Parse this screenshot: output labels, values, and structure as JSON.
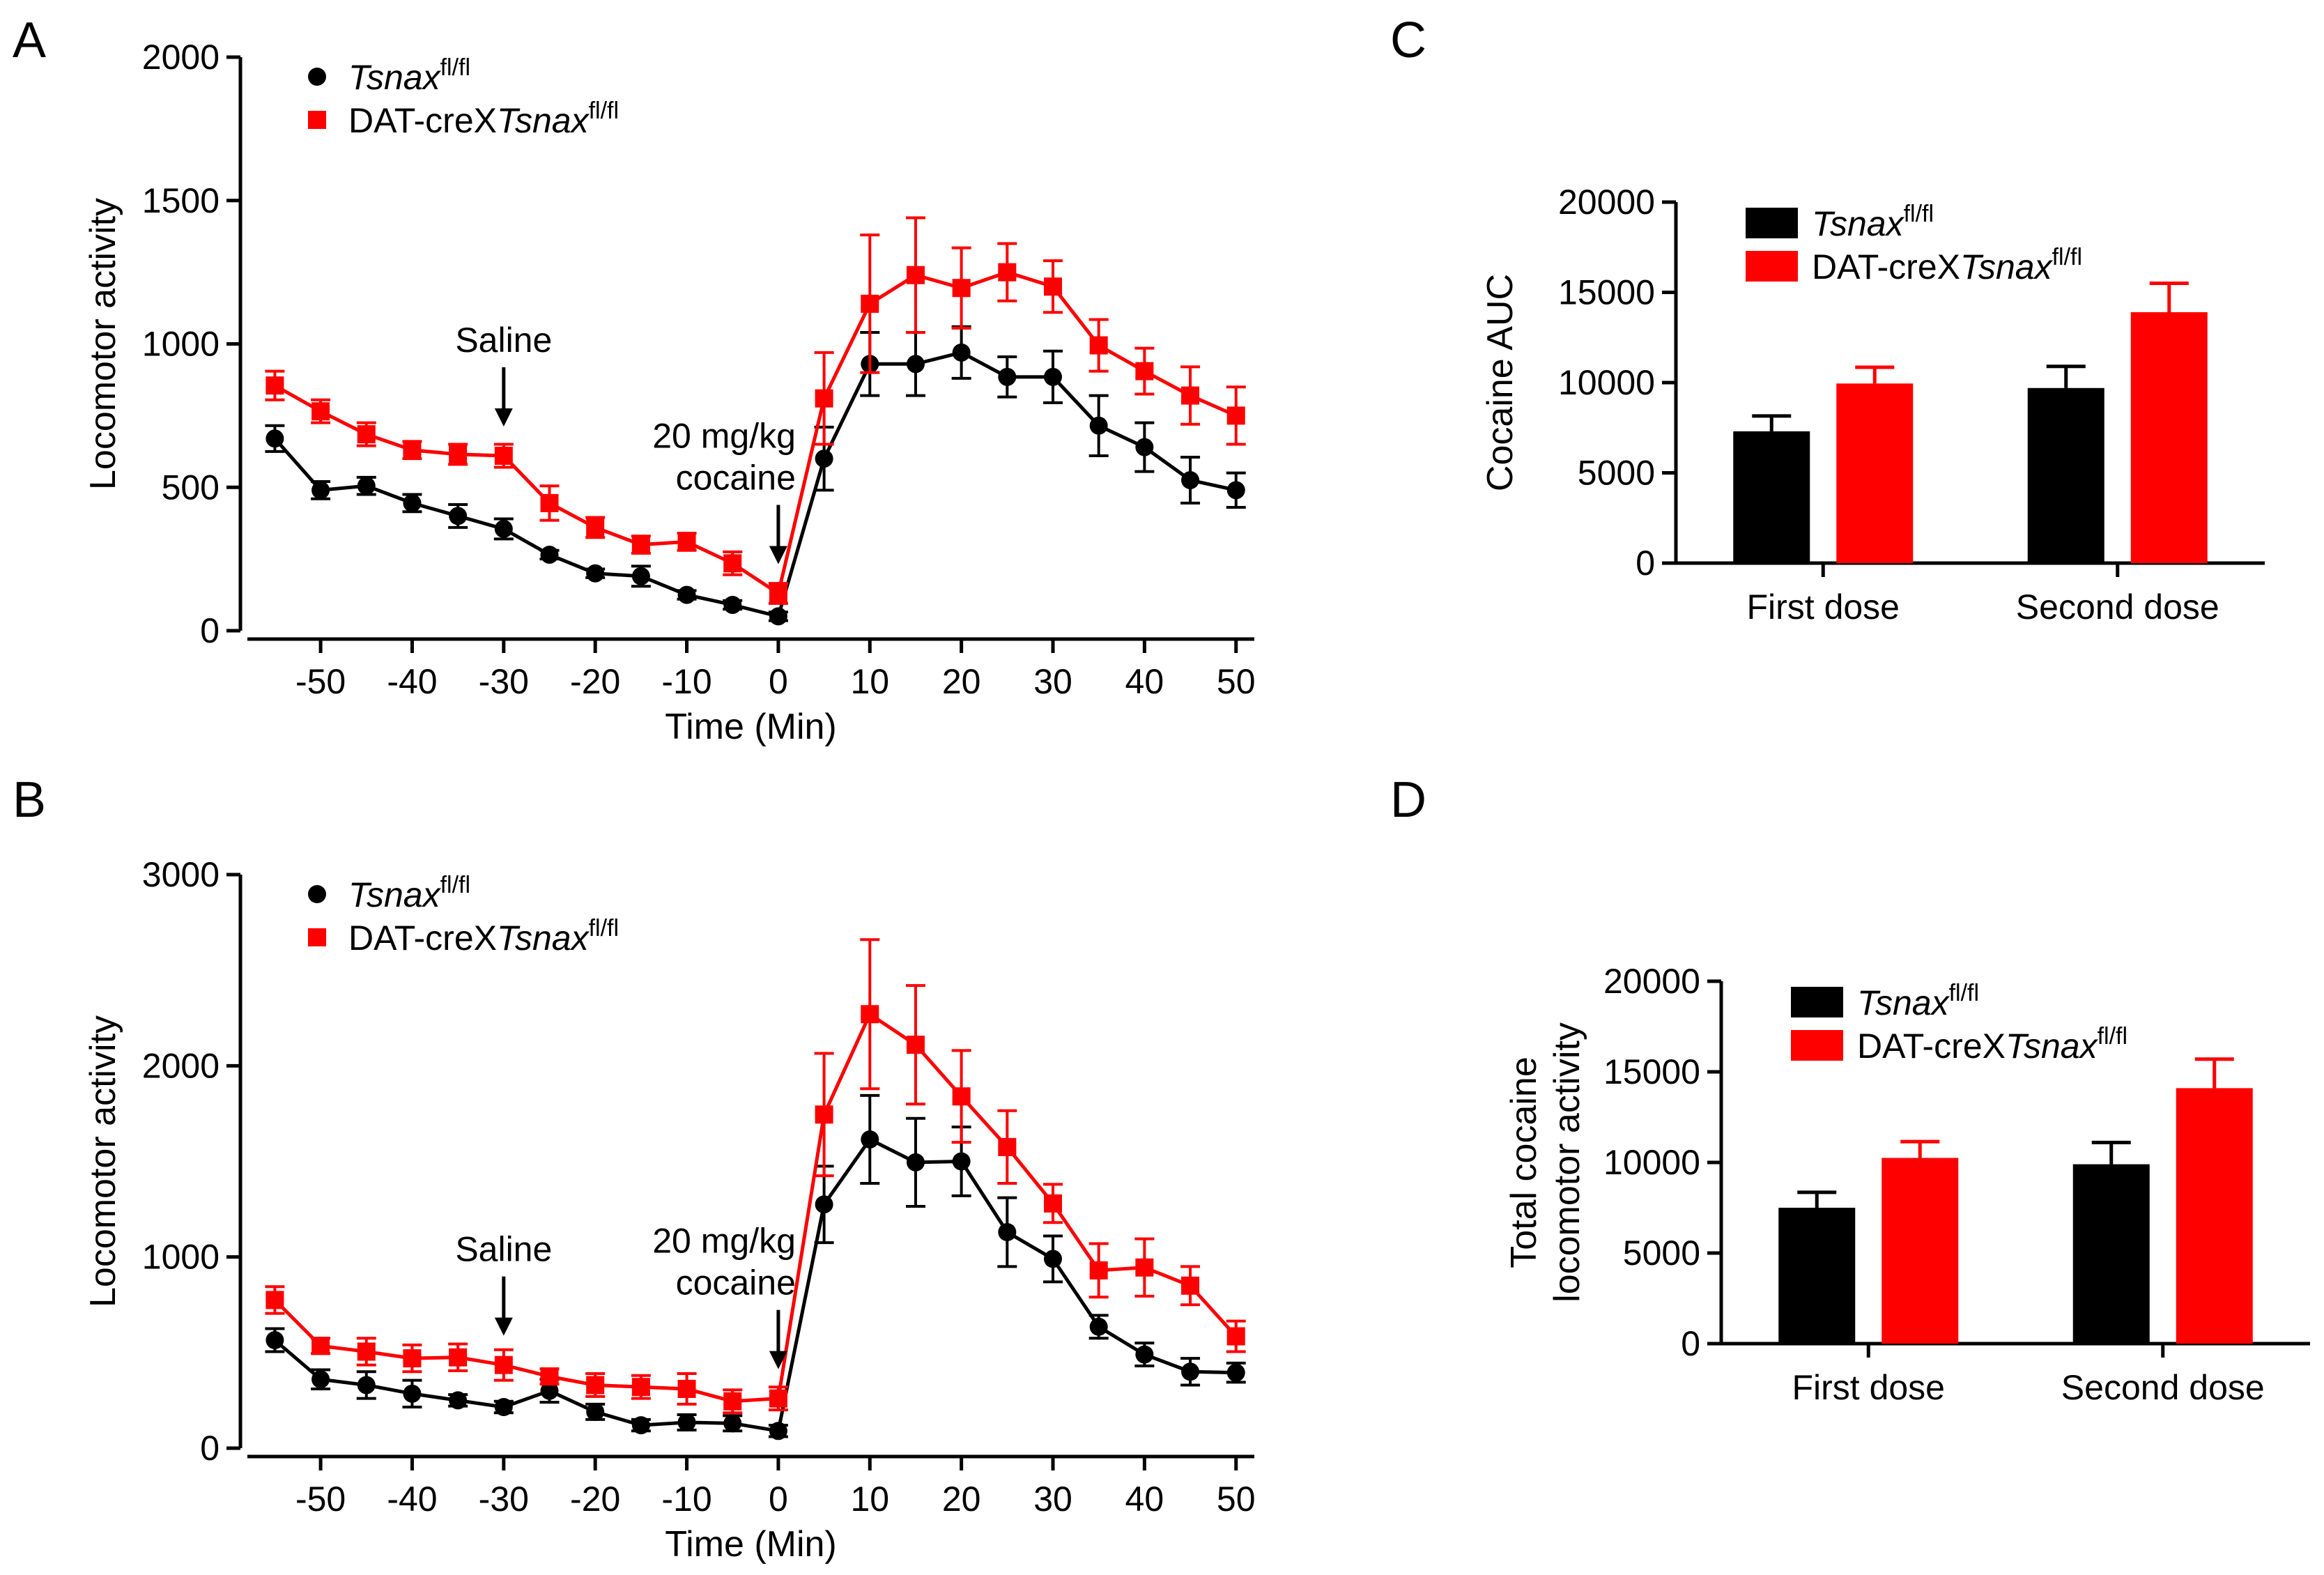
{
  "chart_data": [
    {
      "panel": "A",
      "type": "line",
      "xlabel": "Time (Min)",
      "ylabel": "Locomotor activity",
      "xlim": [
        -58,
        52
      ],
      "ylim": [
        0,
        2000
      ],
      "xticks": [
        -50,
        -40,
        -30,
        -20,
        -10,
        0,
        10,
        20,
        30,
        40,
        50
      ],
      "yticks": [
        0,
        500,
        1000,
        1500,
        2000
      ],
      "legend": "top-left",
      "x": [
        -55,
        -50,
        -45,
        -40,
        -35,
        -30,
        -25,
        -20,
        -15,
        -10,
        -5,
        0,
        5,
        10,
        15,
        20,
        25,
        30,
        35,
        40,
        45,
        50
      ],
      "series": [
        {
          "name": "Tsnax",
          "sup": "fl/fl",
          "prefix": "",
          "color": "#000000",
          "marker": "circle",
          "values": [
            670,
            490,
            505,
            445,
            400,
            355,
            265,
            200,
            190,
            125,
            90,
            50,
            600,
            930,
            930,
            970,
            885,
            885,
            715,
            640,
            525,
            490
          ],
          "errors": [
            45,
            30,
            30,
            30,
            40,
            35,
            15,
            15,
            35,
            15,
            15,
            15,
            110,
            110,
            110,
            90,
            70,
            90,
            105,
            85,
            80,
            60
          ]
        },
        {
          "name": "Tsnax",
          "sup": "fl/fl",
          "prefix": "DAT-creX",
          "color": "#ff0000",
          "marker": "square",
          "values": [
            855,
            765,
            685,
            630,
            615,
            610,
            445,
            360,
            300,
            310,
            235,
            130,
            810,
            1140,
            1240,
            1195,
            1250,
            1200,
            995,
            905,
            820,
            750
          ],
          "errors": [
            50,
            40,
            40,
            30,
            35,
            40,
            60,
            35,
            30,
            30,
            40,
            35,
            160,
            240,
            200,
            140,
            100,
            90,
            90,
            80,
            100,
            100
          ]
        }
      ],
      "annotations": [
        {
          "lines": [
            "Saline"
          ],
          "x": -30,
          "y": 610
        },
        {
          "lines": [
            "20 mg/kg",
            "cocaine"
          ],
          "x": 0,
          "y": 130
        }
      ]
    },
    {
      "panel": "B",
      "type": "line",
      "xlabel": "Time (Min)",
      "ylabel": "Locomotor activity",
      "xlim": [
        -58,
        52
      ],
      "ylim": [
        0,
        3000
      ],
      "xticks": [
        -50,
        -40,
        -30,
        -20,
        -10,
        0,
        10,
        20,
        30,
        40,
        50
      ],
      "yticks": [
        0,
        1000,
        2000,
        3000
      ],
      "legend": "top-left",
      "x": [
        -55,
        -50,
        -45,
        -40,
        -35,
        -30,
        -25,
        -20,
        -15,
        -10,
        -5,
        0,
        5,
        10,
        15,
        20,
        25,
        30,
        35,
        40,
        45,
        50
      ],
      "series": [
        {
          "name": "Tsnax",
          "sup": "fl/fl",
          "prefix": "",
          "color": "#000000",
          "marker": "circle",
          "values": [
            565,
            360,
            330,
            285,
            250,
            215,
            300,
            190,
            120,
            135,
            130,
            90,
            1275,
            1615,
            1495,
            1500,
            1130,
            990,
            635,
            490,
            400,
            395
          ],
          "errors": [
            60,
            50,
            70,
            70,
            30,
            30,
            60,
            40,
            30,
            40,
            40,
            30,
            200,
            230,
            230,
            180,
            180,
            120,
            60,
            60,
            70,
            50
          ]
        },
        {
          "name": "Tsnax",
          "sup": "fl/fl",
          "prefix": "DAT-creX",
          "color": "#ff0000",
          "marker": "square",
          "values": [
            775,
            535,
            505,
            470,
            475,
            435,
            375,
            330,
            320,
            310,
            245,
            260,
            1745,
            2270,
            2110,
            1840,
            1575,
            1280,
            930,
            945,
            850,
            585
          ],
          "errors": [
            70,
            40,
            70,
            70,
            70,
            80,
            40,
            60,
            60,
            80,
            60,
            60,
            320,
            390,
            310,
            240,
            190,
            100,
            140,
            150,
            100,
            80
          ]
        }
      ],
      "annotations": [
        {
          "lines": [
            "Saline"
          ],
          "x": -30,
          "y": 435
        },
        {
          "lines": [
            "20 mg/kg",
            "cocaine"
          ],
          "x": 0,
          "y": 260
        }
      ]
    },
    {
      "panel": "C",
      "type": "bar",
      "xlabel": "",
      "ylabel": "Cocaine AUC",
      "ylim": [
        0,
        20000
      ],
      "yticks": [
        0,
        5000,
        10000,
        15000,
        20000
      ],
      "categories": [
        "First dose",
        "Second dose"
      ],
      "legend": "top-left",
      "series": [
        {
          "name": "Tsnax",
          "sup": "fl/fl",
          "prefix": "",
          "color": "#000000",
          "values": [
            7300,
            9700
          ],
          "errors": [
            850,
            1200
          ]
        },
        {
          "name": "Tsnax",
          "sup": "fl/fl",
          "prefix": "DAT-creX",
          "color": "#ff0000",
          "values": [
            9950,
            13900
          ],
          "errors": [
            900,
            1600
          ]
        }
      ]
    },
    {
      "panel": "D",
      "type": "bar",
      "xlabel": "",
      "ylabel": [
        "Total cocaine",
        "locomotor activity"
      ],
      "ylim": [
        0,
        20000
      ],
      "yticks": [
        0,
        5000,
        10000,
        15000,
        20000
      ],
      "categories": [
        "First dose",
        "Second dose"
      ],
      "legend": "top-left",
      "series": [
        {
          "name": "Tsnax",
          "sup": "fl/fl",
          "prefix": "",
          "color": "#000000",
          "values": [
            7500,
            9900
          ],
          "errors": [
            850,
            1200
          ]
        },
        {
          "name": "Tsnax",
          "sup": "fl/fl",
          "prefix": "DAT-creX",
          "color": "#ff0000",
          "values": [
            10250,
            14100
          ],
          "errors": [
            900,
            1600
          ]
        }
      ]
    }
  ]
}
